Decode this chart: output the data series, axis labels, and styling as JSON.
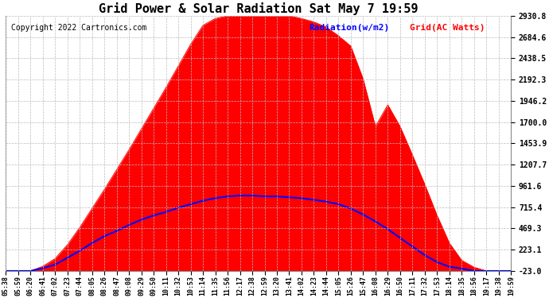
{
  "title": "Grid Power & Solar Radiation Sat May 7 19:59",
  "copyright": "Copyright 2022 Cartronics.com",
  "legend_radiation": "Radiation(w/m2)",
  "legend_grid": "Grid(AC Watts)",
  "yticks": [
    -23.0,
    223.1,
    469.3,
    715.4,
    961.6,
    1207.7,
    1453.9,
    1700.0,
    1946.2,
    2192.3,
    2438.5,
    2684.6,
    2930.8
  ],
  "ymin": -23.0,
  "ymax": 2930.8,
  "background_color": "#ffffff",
  "grid_color": "#bbbbbb",
  "fill_color": "#ff0000",
  "line_color_blue": "#0000ff",
  "line_color_red": "#ff0000",
  "x_times": [
    "05:38",
    "05:59",
    "06:20",
    "06:41",
    "07:02",
    "07:23",
    "07:44",
    "08:05",
    "08:26",
    "08:47",
    "09:08",
    "09:29",
    "09:50",
    "10:11",
    "10:32",
    "10:53",
    "11:14",
    "11:35",
    "11:56",
    "12:17",
    "12:38",
    "12:59",
    "13:20",
    "13:41",
    "14:02",
    "14:23",
    "14:44",
    "15:05",
    "15:26",
    "15:47",
    "16:08",
    "16:29",
    "16:50",
    "17:11",
    "17:32",
    "17:53",
    "18:14",
    "18:35",
    "18:56",
    "19:17",
    "19:38",
    "19:59"
  ],
  "solar_values": [
    -23,
    -23,
    -23,
    30,
    120,
    280,
    480,
    700,
    920,
    1150,
    1380,
    1620,
    1860,
    2100,
    2350,
    2600,
    2820,
    2900,
    2931,
    2931,
    2931,
    2931,
    2931,
    2931,
    2900,
    2860,
    2800,
    2700,
    2580,
    2200,
    1650,
    1900,
    1650,
    1320,
    980,
    620,
    300,
    100,
    20,
    -23,
    -23,
    -23
  ],
  "grid_values": [
    -23,
    -23,
    -23,
    10,
    50,
    130,
    210,
    300,
    380,
    440,
    510,
    570,
    620,
    660,
    710,
    750,
    790,
    820,
    840,
    850,
    850,
    840,
    840,
    830,
    820,
    800,
    780,
    750,
    700,
    630,
    550,
    460,
    360,
    260,
    160,
    80,
    25,
    5,
    -23,
    -23,
    -23,
    -23
  ],
  "title_fontsize": 11,
  "copyright_fontsize": 7,
  "legend_fontsize": 8,
  "tick_fontsize": 7,
  "xtick_fontsize": 6
}
